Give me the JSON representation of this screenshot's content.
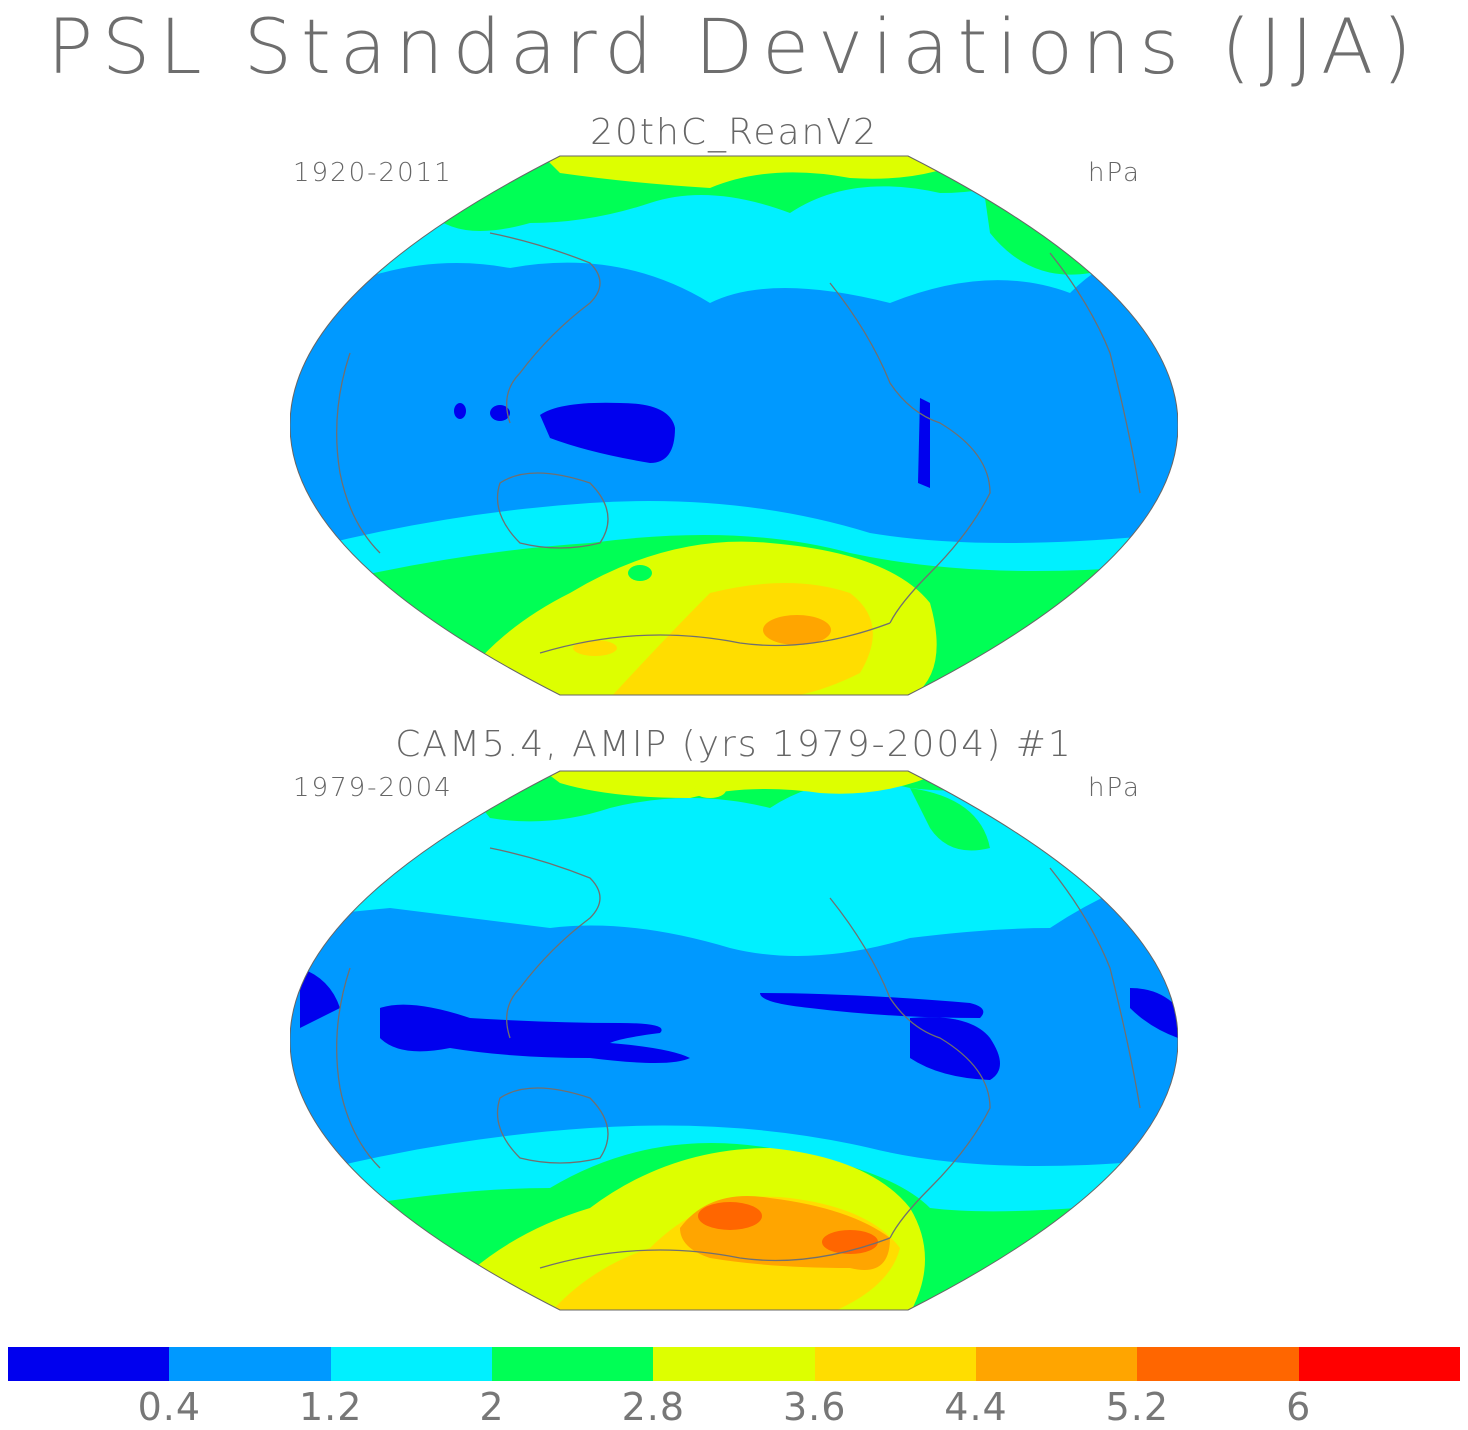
{
  "title": "PSL Standard Deviations (JJA)",
  "panels": [
    {
      "title": "20thC_ReanV2",
      "period": "1920-2011",
      "units": "hPa"
    },
    {
      "title": "CAM5.4, AMIP (yrs 1979-2004)      #1",
      "period": "1979-2004",
      "units": "hPa"
    }
  ],
  "colorbar": {
    "colors": [
      "#0000ee",
      "#0099ff",
      "#00f0ff",
      "#00ff55",
      "#ddff00",
      "#ffdd00",
      "#ffa500",
      "#ff6600",
      "#ff0000"
    ],
    "labels": [
      "0.4",
      "1.2",
      "2",
      "2.8",
      "3.6",
      "4.4",
      "5.2",
      "6"
    ]
  },
  "colors": {
    "coast": "#707070"
  }
}
